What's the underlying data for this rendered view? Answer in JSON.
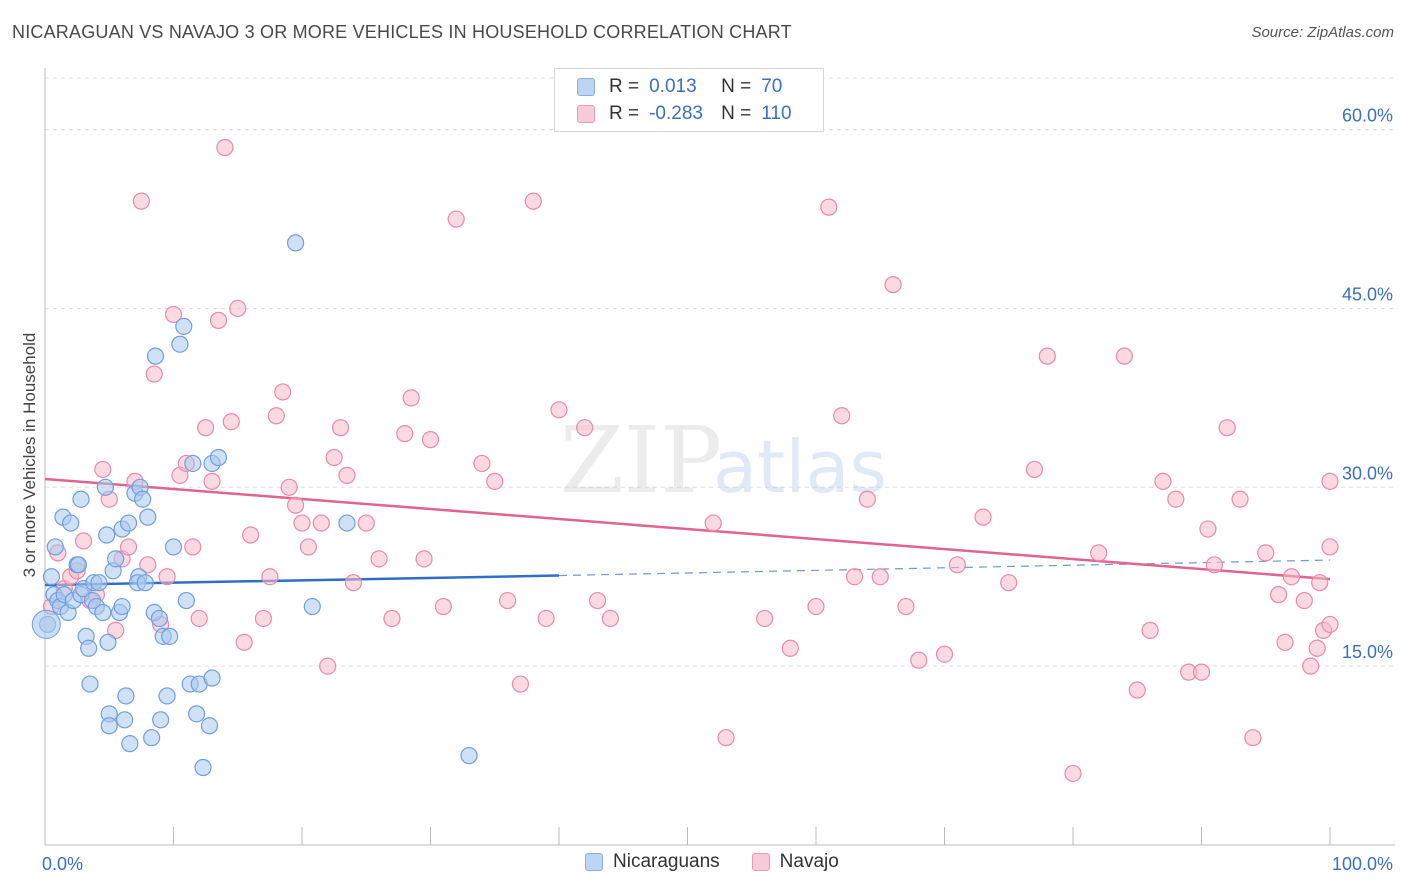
{
  "title": "NICARAGUAN VS NAVAJO 3 OR MORE VEHICLES IN HOUSEHOLD CORRELATION CHART",
  "source": "Source: ZipAtlas.com",
  "watermark": {
    "zip": "ZIP",
    "atlas": "atlas"
  },
  "colors": {
    "blue_fill": "#a9c8ef",
    "blue_stroke": "#6f9fde",
    "blue_line": "#2f6fc9",
    "pink_fill": "#f5b9cc",
    "pink_stroke": "#e98aa8",
    "pink_line": "#e0648f",
    "axis_text": "#3b6fc4",
    "grid": "#dddddd"
  },
  "legend": {
    "r_label": "R =",
    "n_label": "N =",
    "rows": [
      {
        "series": "Nicaraguans",
        "r": "0.013",
        "n": "70"
      },
      {
        "series": "Navajo",
        "r": "-0.283",
        "n": "110"
      }
    ]
  },
  "bottom_legend": [
    "Nicaraguans",
    "Navajo"
  ],
  "chart_data": {
    "type": "scatter",
    "title": "NICARAGUAN VS NAVAJO 3 OR MORE VEHICLES IN HOUSEHOLD CORRELATION CHART",
    "xlabel": "",
    "ylabel": "3 or more Vehicles in Household",
    "xlim": [
      0,
      100
    ],
    "ylim": [
      0,
      65
    ],
    "x_tick_labels": {
      "0": "0.0%",
      "100": "100.0%"
    },
    "y_ticks": [
      15,
      30,
      45,
      60
    ],
    "y_tick_labels": [
      "15.0%",
      "30.0%",
      "45.0%",
      "60.0%"
    ],
    "legend_position": "top-center",
    "series": [
      {
        "name": "Nicaraguans",
        "color": "#a9c8ef",
        "trend": {
          "x": [
            0,
            40
          ],
          "y": [
            21.8,
            22.6
          ],
          "dashed_to": [
            100,
            23.9
          ]
        },
        "points": [
          [
            0.2,
            18.5
          ],
          [
            0.5,
            22.5
          ],
          [
            0.7,
            21.0
          ],
          [
            0.8,
            25.0
          ],
          [
            1.0,
            20.5
          ],
          [
            1.2,
            20.0
          ],
          [
            1.5,
            21.0
          ],
          [
            1.8,
            19.5
          ],
          [
            1.4,
            27.5
          ],
          [
            2.0,
            27.0
          ],
          [
            2.2,
            20.5
          ],
          [
            2.5,
            23.5
          ],
          [
            2.8,
            21.0
          ],
          [
            2.6,
            23.5
          ],
          [
            2.8,
            29.0
          ],
          [
            3.0,
            21.5
          ],
          [
            3.2,
            17.5
          ],
          [
            3.4,
            16.5
          ],
          [
            3.5,
            13.5
          ],
          [
            3.7,
            20.5
          ],
          [
            3.8,
            22.0
          ],
          [
            4.0,
            20.0
          ],
          [
            4.2,
            22.0
          ],
          [
            4.5,
            19.5
          ],
          [
            4.7,
            30.0
          ],
          [
            4.8,
            26.0
          ],
          [
            4.9,
            17.0
          ],
          [
            5.0,
            11.0
          ],
          [
            5.3,
            23.0
          ],
          [
            5.5,
            24.0
          ],
          [
            5.8,
            19.5
          ],
          [
            6.0,
            20.0
          ],
          [
            6.0,
            26.5
          ],
          [
            6.2,
            10.5
          ],
          [
            6.5,
            27.0
          ],
          [
            6.3,
            12.5
          ],
          [
            6.6,
            8.5
          ],
          [
            7.0,
            29.5
          ],
          [
            7.3,
            22.5
          ],
          [
            7.2,
            22.0
          ],
          [
            7.4,
            30.0
          ],
          [
            7.6,
            29.0
          ],
          [
            7.8,
            22.0
          ],
          [
            8.0,
            27.5
          ],
          [
            8.3,
            9.0
          ],
          [
            8.5,
            19.5
          ],
          [
            8.6,
            41.0
          ],
          [
            8.9,
            19.0
          ],
          [
            9.0,
            10.5
          ],
          [
            9.2,
            17.5
          ],
          [
            9.5,
            12.5
          ],
          [
            9.7,
            17.5
          ],
          [
            10.0,
            25.0
          ],
          [
            10.5,
            42.0
          ],
          [
            10.8,
            43.5
          ],
          [
            11.0,
            20.5
          ],
          [
            11.3,
            13.5
          ],
          [
            11.5,
            32.0
          ],
          [
            11.8,
            11.0
          ],
          [
            12.0,
            13.5
          ],
          [
            12.3,
            6.5
          ],
          [
            12.8,
            10.0
          ],
          [
            13.0,
            14.0
          ],
          [
            13.0,
            32.0
          ],
          [
            13.5,
            32.5
          ],
          [
            19.5,
            50.5
          ],
          [
            20.8,
            20.0
          ],
          [
            23.5,
            27.0
          ],
          [
            33.0,
            7.5
          ],
          [
            5.0,
            10.0
          ]
        ]
      },
      {
        "name": "Navajo",
        "color": "#f5b9cc",
        "trend": {
          "x": [
            0,
            100
          ],
          "y": [
            30.7,
            22.3
          ]
        },
        "points": [
          [
            0.5,
            20.0
          ],
          [
            1.0,
            24.5
          ],
          [
            1.5,
            21.5
          ],
          [
            2.0,
            22.5
          ],
          [
            2.5,
            23.0
          ],
          [
            3.0,
            25.5
          ],
          [
            3.5,
            20.5
          ],
          [
            4.0,
            21.0
          ],
          [
            4.5,
            31.5
          ],
          [
            5.0,
            29.0
          ],
          [
            5.5,
            18.0
          ],
          [
            6.0,
            24.0
          ],
          [
            6.5,
            25.0
          ],
          [
            7.0,
            30.5
          ],
          [
            7.5,
            54.0
          ],
          [
            8.0,
            23.5
          ],
          [
            8.5,
            39.5
          ],
          [
            9.0,
            18.5
          ],
          [
            9.5,
            22.5
          ],
          [
            10.0,
            44.5
          ],
          [
            10.5,
            31.0
          ],
          [
            11.0,
            32.0
          ],
          [
            11.5,
            25.0
          ],
          [
            12.0,
            19.0
          ],
          [
            12.5,
            35.0
          ],
          [
            13.0,
            30.5
          ],
          [
            13.5,
            44.0
          ],
          [
            14.0,
            58.5
          ],
          [
            14.5,
            35.5
          ],
          [
            15.0,
            45.0
          ],
          [
            15.5,
            17.0
          ],
          [
            16.0,
            26.0
          ],
          [
            17.0,
            19.0
          ],
          [
            17.5,
            22.5
          ],
          [
            18.0,
            36.0
          ],
          [
            18.5,
            38.0
          ],
          [
            19.0,
            30.0
          ],
          [
            19.5,
            28.5
          ],
          [
            20.0,
            27.0
          ],
          [
            20.5,
            25.0
          ],
          [
            21.5,
            27.0
          ],
          [
            22.0,
            15.0
          ],
          [
            22.5,
            32.5
          ],
          [
            23.0,
            35.0
          ],
          [
            23.5,
            31.0
          ],
          [
            24.0,
            22.0
          ],
          [
            25.0,
            27.0
          ],
          [
            26.0,
            24.0
          ],
          [
            27.0,
            19.0
          ],
          [
            28.0,
            34.5
          ],
          [
            28.5,
            37.5
          ],
          [
            29.5,
            24.0
          ],
          [
            30.0,
            34.0
          ],
          [
            31.0,
            20.0
          ],
          [
            32.0,
            52.5
          ],
          [
            34.0,
            32.0
          ],
          [
            35.0,
            30.5
          ],
          [
            36.0,
            20.5
          ],
          [
            37.0,
            13.5
          ],
          [
            38.0,
            54.0
          ],
          [
            39.0,
            19.0
          ],
          [
            40.0,
            36.5
          ],
          [
            42.0,
            35.0
          ],
          [
            43.0,
            20.5
          ],
          [
            44.0,
            19.0
          ],
          [
            52.0,
            27.0
          ],
          [
            53.0,
            9.0
          ],
          [
            56.0,
            19.0
          ],
          [
            58.0,
            16.5
          ],
          [
            60.0,
            20.0
          ],
          [
            61.0,
            53.5
          ],
          [
            62.0,
            36.0
          ],
          [
            63.0,
            22.5
          ],
          [
            64.0,
            29.0
          ],
          [
            65.0,
            22.5
          ],
          [
            66.0,
            47.0
          ],
          [
            67.0,
            20.0
          ],
          [
            68.0,
            15.5
          ],
          [
            70.0,
            16.0
          ],
          [
            71.0,
            23.5
          ],
          [
            73.0,
            27.5
          ],
          [
            75.0,
            22.0
          ],
          [
            77.0,
            31.5
          ],
          [
            78.0,
            41.0
          ],
          [
            80.0,
            6.0
          ],
          [
            82.0,
            24.5
          ],
          [
            84.0,
            41.0
          ],
          [
            85.0,
            13.0
          ],
          [
            86.0,
            18.0
          ],
          [
            87.0,
            30.5
          ],
          [
            88.0,
            29.0
          ],
          [
            89.0,
            14.5
          ],
          [
            90.0,
            14.5
          ],
          [
            90.5,
            26.5
          ],
          [
            91.0,
            23.5
          ],
          [
            92.0,
            35.0
          ],
          [
            93.0,
            29.0
          ],
          [
            94.0,
            9.0
          ],
          [
            95.0,
            24.5
          ],
          [
            96.0,
            21.0
          ],
          [
            96.5,
            17.0
          ],
          [
            97.0,
            22.5
          ],
          [
            98.0,
            20.5
          ],
          [
            99.0,
            16.5
          ],
          [
            99.5,
            18.0
          ],
          [
            100.0,
            30.5
          ],
          [
            98.5,
            15.0
          ],
          [
            99.2,
            22.0
          ],
          [
            100.0,
            18.5
          ],
          [
            100.0,
            25.0
          ]
        ]
      }
    ]
  }
}
